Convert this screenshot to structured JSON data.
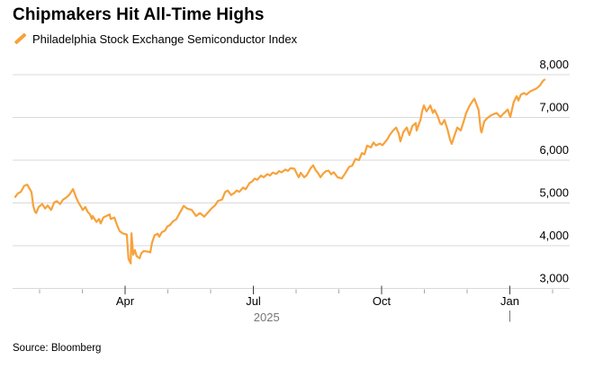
{
  "header": {
    "title": "Chipmakers Hit All-Time Highs"
  },
  "legend": {
    "label": "Philadelphia Stock Exchange Semiconductor Index",
    "swatch_color": "#F7A23C"
  },
  "footer": {
    "source": "Source: Bloomberg"
  },
  "chart_data": {
    "type": "line",
    "title": "Chipmakers Hit All-Time Highs",
    "series_name": "Philadelphia Stock Exchange Semiconductor Index",
    "line_color": "#F7A23C",
    "grid_color": "#D9D9D9",
    "minor_tick_color": "#A6A6A6",
    "major_tick_color": "#3C3C3C",
    "muted_text_color": "#767676",
    "grid": true,
    "legend_position": "top-left",
    "x_unit": "months_since_2025-01-01",
    "x_domain": [
      0.35,
      13.4
    ],
    "y_range": [
      3000,
      8000
    ],
    "y_ticks": [
      3000,
      4000,
      5000,
      6000,
      7000,
      8000
    ],
    "x_major_ticks": [
      {
        "m": 3,
        "label": "Apr"
      },
      {
        "m": 6,
        "label": "Jul"
      },
      {
        "m": 9,
        "label": "Oct"
      },
      {
        "m": 12,
        "label": "Jan"
      }
    ],
    "x_minor_ticks": [
      1,
      2,
      4,
      5,
      7,
      8,
      10,
      11,
      13
    ],
    "year_label": {
      "text": "2025",
      "m": 6.31
    },
    "year_divider_m": 12,
    "points": [
      [
        0.43,
        5140
      ],
      [
        0.49,
        5220
      ],
      [
        0.56,
        5260
      ],
      [
        0.64,
        5400
      ],
      [
        0.71,
        5430
      ],
      [
        0.77,
        5325
      ],
      [
        0.81,
        5255
      ],
      [
        0.85,
        4940
      ],
      [
        0.89,
        4800
      ],
      [
        0.92,
        4765
      ],
      [
        0.98,
        4905
      ],
      [
        1.06,
        4975
      ],
      [
        1.13,
        4870
      ],
      [
        1.19,
        4940
      ],
      [
        1.27,
        4835
      ],
      [
        1.34,
        5010
      ],
      [
        1.4,
        5045
      ],
      [
        1.48,
        4975
      ],
      [
        1.55,
        5080
      ],
      [
        1.61,
        5115
      ],
      [
        1.69,
        5185
      ],
      [
        1.78,
        5325
      ],
      [
        1.82,
        5220
      ],
      [
        1.86,
        5115
      ],
      [
        1.91,
        5010
      ],
      [
        1.97,
        4905
      ],
      [
        2.01,
        4835
      ],
      [
        2.07,
        4905
      ],
      [
        2.12,
        4800
      ],
      [
        2.18,
        4730
      ],
      [
        2.22,
        4625
      ],
      [
        2.24,
        4695
      ],
      [
        2.33,
        4555
      ],
      [
        2.39,
        4625
      ],
      [
        2.43,
        4520
      ],
      [
        2.49,
        4660
      ],
      [
        2.56,
        4695
      ],
      [
        2.64,
        4730
      ],
      [
        2.66,
        4625
      ],
      [
        2.75,
        4660
      ],
      [
        2.81,
        4485
      ],
      [
        2.87,
        4345
      ],
      [
        2.94,
        4290
      ],
      [
        2.98,
        4275
      ],
      [
        3.04,
        4260
      ],
      [
        3.08,
        3690
      ],
      [
        3.13,
        3585
      ],
      [
        3.15,
        4290
      ],
      [
        3.19,
        3790
      ],
      [
        3.23,
        3895
      ],
      [
        3.27,
        3755
      ],
      [
        3.34,
        3705
      ],
      [
        3.38,
        3825
      ],
      [
        3.44,
        3875
      ],
      [
        3.53,
        3860
      ],
      [
        3.59,
        3845
      ],
      [
        3.63,
        4070
      ],
      [
        3.69,
        4245
      ],
      [
        3.76,
        4280
      ],
      [
        3.8,
        4210
      ],
      [
        3.86,
        4315
      ],
      [
        3.93,
        4350
      ],
      [
        3.99,
        4450
      ],
      [
        4.05,
        4485
      ],
      [
        4.12,
        4570
      ],
      [
        4.2,
        4620
      ],
      [
        4.28,
        4770
      ],
      [
        4.37,
        4930
      ],
      [
        4.45,
        4870
      ],
      [
        4.56,
        4835
      ],
      [
        4.66,
        4695
      ],
      [
        4.75,
        4765
      ],
      [
        4.85,
        4680
      ],
      [
        4.96,
        4800
      ],
      [
        5.02,
        4870
      ],
      [
        5.11,
        4950
      ],
      [
        5.17,
        5045
      ],
      [
        5.27,
        5080
      ],
      [
        5.34,
        5255
      ],
      [
        5.4,
        5290
      ],
      [
        5.48,
        5185
      ],
      [
        5.55,
        5230
      ],
      [
        5.61,
        5290
      ],
      [
        5.67,
        5260
      ],
      [
        5.76,
        5360
      ],
      [
        5.82,
        5320
      ],
      [
        5.91,
        5465
      ],
      [
        5.97,
        5500
      ],
      [
        6.03,
        5570
      ],
      [
        6.09,
        5540
      ],
      [
        6.18,
        5640
      ],
      [
        6.24,
        5600
      ],
      [
        6.33,
        5675
      ],
      [
        6.39,
        5640
      ],
      [
        6.45,
        5710
      ],
      [
        6.54,
        5680
      ],
      [
        6.6,
        5745
      ],
      [
        6.66,
        5715
      ],
      [
        6.75,
        5780
      ],
      [
        6.81,
        5750
      ],
      [
        6.87,
        5815
      ],
      [
        6.96,
        5800
      ],
      [
        7.02,
        5680
      ],
      [
        7.06,
        5600
      ],
      [
        7.11,
        5705
      ],
      [
        7.19,
        5600
      ],
      [
        7.25,
        5650
      ],
      [
        7.34,
        5810
      ],
      [
        7.4,
        5880
      ],
      [
        7.46,
        5760
      ],
      [
        7.51,
        5705
      ],
      [
        7.57,
        5600
      ],
      [
        7.63,
        5680
      ],
      [
        7.69,
        5740
      ],
      [
        7.76,
        5755
      ],
      [
        7.82,
        5670
      ],
      [
        7.88,
        5720
      ],
      [
        7.97,
        5600
      ],
      [
        8.07,
        5575
      ],
      [
        8.14,
        5680
      ],
      [
        8.18,
        5740
      ],
      [
        8.24,
        5845
      ],
      [
        8.31,
        5870
      ],
      [
        8.39,
        6030
      ],
      [
        8.47,
        6000
      ],
      [
        8.54,
        6165
      ],
      [
        8.6,
        6140
      ],
      [
        8.66,
        6340
      ],
      [
        8.75,
        6300
      ],
      [
        8.81,
        6415
      ],
      [
        8.87,
        6345
      ],
      [
        8.96,
        6390
      ],
      [
        9.02,
        6350
      ],
      [
        9.13,
        6485
      ],
      [
        9.19,
        6590
      ],
      [
        9.27,
        6695
      ],
      [
        9.34,
        6765
      ],
      [
        9.4,
        6625
      ],
      [
        9.44,
        6440
      ],
      [
        9.51,
        6660
      ],
      [
        9.59,
        6765
      ],
      [
        9.65,
        6590
      ],
      [
        9.72,
        6800
      ],
      [
        9.8,
        6870
      ],
      [
        9.82,
        6695
      ],
      [
        9.91,
        6940
      ],
      [
        9.95,
        7150
      ],
      [
        9.99,
        7280
      ],
      [
        10.05,
        7140
      ],
      [
        10.14,
        7280
      ],
      [
        10.2,
        7105
      ],
      [
        10.24,
        7175
      ],
      [
        10.31,
        7035
      ],
      [
        10.37,
        6860
      ],
      [
        10.41,
        6835
      ],
      [
        10.47,
        6940
      ],
      [
        10.54,
        6730
      ],
      [
        10.6,
        6485
      ],
      [
        10.64,
        6380
      ],
      [
        10.71,
        6590
      ],
      [
        10.77,
        6765
      ],
      [
        10.85,
        6695
      ],
      [
        10.92,
        6905
      ],
      [
        10.98,
        7105
      ],
      [
        11.06,
        7280
      ],
      [
        11.13,
        7385
      ],
      [
        11.17,
        7440
      ],
      [
        11.23,
        7280
      ],
      [
        11.27,
        7175
      ],
      [
        11.32,
        6695
      ],
      [
        11.34,
        6650
      ],
      [
        11.4,
        6905
      ],
      [
        11.46,
        6975
      ],
      [
        11.55,
        7045
      ],
      [
        11.63,
        7080
      ],
      [
        11.69,
        7105
      ],
      [
        11.78,
        7010
      ],
      [
        11.84,
        7080
      ],
      [
        11.88,
        7115
      ],
      [
        11.95,
        7185
      ],
      [
        12.01,
        7010
      ],
      [
        12.09,
        7360
      ],
      [
        12.16,
        7500
      ],
      [
        12.2,
        7395
      ],
      [
        12.26,
        7535
      ],
      [
        12.33,
        7570
      ],
      [
        12.39,
        7535
      ],
      [
        12.47,
        7605
      ],
      [
        12.54,
        7640
      ],
      [
        12.62,
        7675
      ],
      [
        12.7,
        7745
      ],
      [
        12.77,
        7850
      ],
      [
        12.81,
        7885
      ]
    ]
  }
}
